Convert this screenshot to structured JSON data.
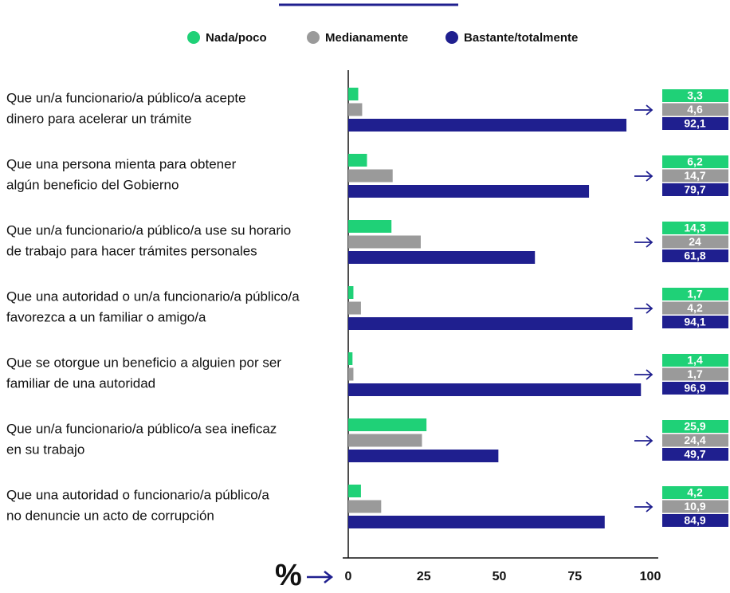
{
  "chart_data": {
    "type": "bar",
    "orientation": "horizontal",
    "categories": [
      [
        "Que un/a funcionario/a público/a acepte",
        "dinero para acelerar un trámite"
      ],
      [
        "Que una persona mienta para obtener",
        "algún beneficio del Gobierno"
      ],
      [
        "Que un/a funcionario/a público/a use su horario",
        "de trabajo para hacer trámites personales"
      ],
      [
        "Que una autoridad o un/a funcionario/a público/a",
        "favorezca a un familiar o amigo/a"
      ],
      [
        "Que se otorgue un beneficio a alguien por ser",
        "familiar de una autoridad"
      ],
      [
        "Que un/a funcionario/a público/a sea ineficaz",
        "en su trabajo"
      ],
      [
        "Que una autoridad o funcionario/a público/a",
        "no denuncie un acto de corrupción"
      ]
    ],
    "series": [
      {
        "name": "Nada/poco",
        "color": "#1fd177",
        "values": [
          3.3,
          6.2,
          14.3,
          1.7,
          1.4,
          25.9,
          4.2
        ],
        "value_labels": [
          "3,3",
          "6,2",
          "14,3",
          "1,7",
          "1,4",
          "25,9",
          "4,2"
        ]
      },
      {
        "name": "Medianamente",
        "color": "#9a9a9a",
        "values": [
          4.6,
          14.7,
          24,
          4.2,
          1.7,
          24.4,
          10.9
        ],
        "value_labels": [
          "4,6",
          "14,7",
          "24",
          "4,2",
          "1,7",
          "24,4",
          "10,9"
        ]
      },
      {
        "name": "Bastante/totalmente",
        "color": "#1f1f8f",
        "values": [
          92.1,
          79.7,
          61.8,
          94.1,
          96.9,
          49.7,
          84.9
        ],
        "value_labels": [
          "92,1",
          "79,7",
          "61,8",
          "94,1",
          "96,9",
          "49,7",
          "84,9"
        ]
      }
    ],
    "xlabel": "%",
    "xlim": [
      0,
      100
    ],
    "xticks": [
      0,
      25,
      50,
      75,
      100
    ],
    "legend": "top"
  }
}
